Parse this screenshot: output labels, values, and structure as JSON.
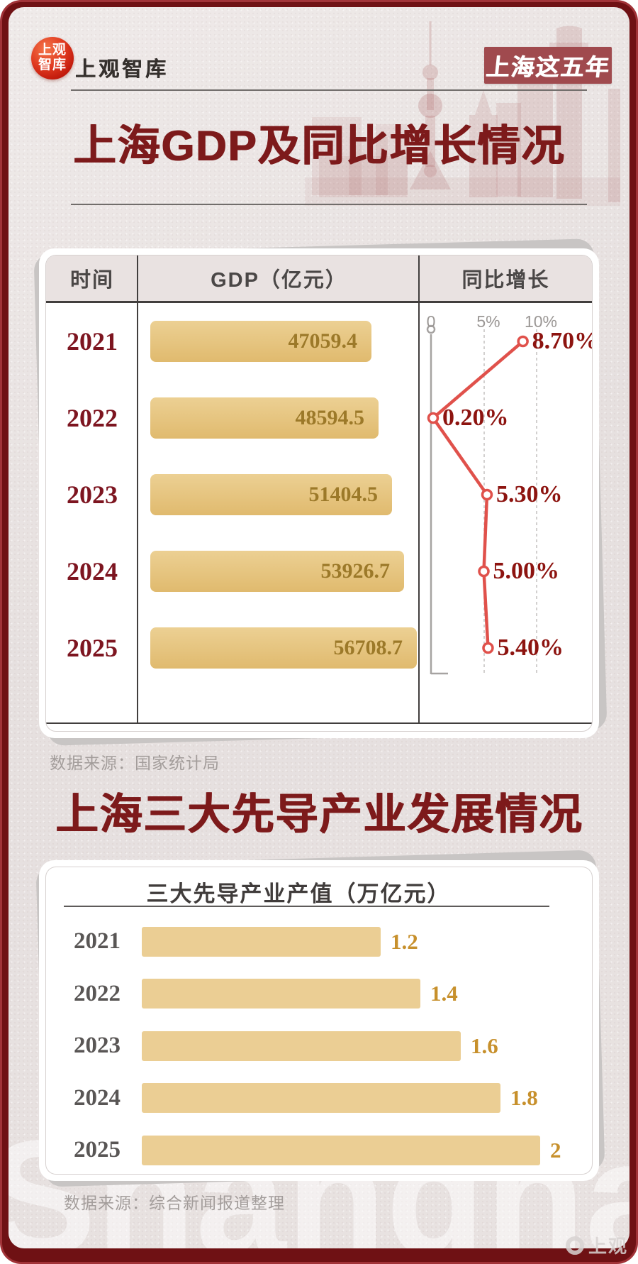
{
  "header": {
    "logo_badge_top": "上观",
    "logo_badge_bottom": "智库",
    "wordmark": "上观智库",
    "corner_badge": "上海这五年"
  },
  "section1": {
    "title": "上海GDP及同比增长情况",
    "source": "数据来源：国家统计局"
  },
  "section2": {
    "title": "上海三大先导产业发展情况",
    "source": "数据来源：综合新闻报道整理"
  },
  "footer": {
    "watermark": "Shanghai",
    "logo_text": "上观"
  },
  "chart_data": [
    {
      "type": "table",
      "title": "上海GDP及同比增长情况",
      "columns": [
        "时间",
        "GDP（亿元）",
        "同比增长"
      ],
      "years": [
        "2021",
        "2022",
        "2023",
        "2024",
        "2025"
      ],
      "gdp_values": [
        47059.4,
        48594.5,
        51404.5,
        53926.7,
        56708.7
      ],
      "growth_values": [
        8.7,
        0.2,
        5.3,
        5.0,
        5.4
      ],
      "growth_labels": [
        "8.70%",
        "0.20%",
        "5.30%",
        "5.00%",
        "5.40%"
      ],
      "axis_ticks": [
        "0",
        "5%",
        "10%"
      ],
      "axis_range": [
        0,
        10
      ],
      "bar_color": "#e6c180",
      "line_color": "#e0514b",
      "source": "数据来源：国家统计局"
    },
    {
      "type": "bar",
      "title": "三大先导产业产值（万亿元）",
      "categories": [
        "2021",
        "2022",
        "2023",
        "2024",
        "2025"
      ],
      "values": [
        1.2,
        1.4,
        1.6,
        1.8,
        2
      ],
      "bar_color": "#ebce94",
      "value_color": "#c7902c",
      "source": "数据来源：综合新闻报道整理"
    }
  ]
}
